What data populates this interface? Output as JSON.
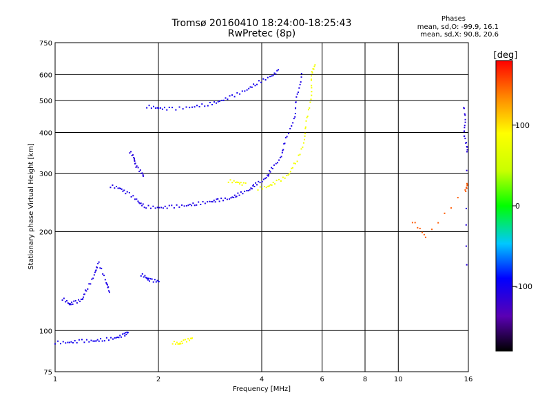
{
  "chart_data": {
    "type": "scatter",
    "title": "Tromsø 20160410 18:24:00-18:25:43",
    "subtitle": "RwPretec (8p)",
    "stats": {
      "heading": "Phases",
      "line1": "mean, sd,O: -99.9, 16.1",
      "line2": "mean, sd,X:  90.8, 20.6"
    },
    "xlabel": "Frequency [MHz]",
    "ylabel": "Stationary phase Virtual Height [km]",
    "xscale": "log",
    "yscale": "log",
    "xlim": [
      1,
      16
    ],
    "ylim": [
      75,
      750
    ],
    "x_ticks": [
      1,
      2,
      4,
      6,
      8,
      10,
      16
    ],
    "y_ticks": [
      75,
      100,
      200,
      300,
      400,
      500,
      600,
      750
    ],
    "grid": true,
    "colorbar": {
      "label": "[deg]",
      "range": [
        -180,
        180
      ],
      "ticks": [
        100,
        0,
        -100
      ]
    },
    "series": [
      {
        "phase": -100,
        "points": [
          [
            1.0,
            92
          ],
          [
            1.1,
            92
          ],
          [
            1.2,
            93
          ],
          [
            1.3,
            93
          ],
          [
            1.4,
            94
          ],
          [
            1.5,
            95
          ],
          [
            1.6,
            97
          ],
          [
            1.62,
            99
          ]
        ]
      },
      {
        "phase": -105,
        "points": [
          [
            1.05,
            125
          ],
          [
            1.1,
            120
          ],
          [
            1.15,
            122
          ],
          [
            1.2,
            125
          ],
          [
            1.25,
            135
          ],
          [
            1.3,
            150
          ],
          [
            1.35,
            160
          ],
          [
            1.4,
            140
          ],
          [
            1.45,
            132
          ]
        ]
      },
      {
        "phase": -100,
        "points": [
          [
            1.78,
            148
          ],
          [
            1.85,
            144
          ],
          [
            1.92,
            142
          ],
          [
            2.0,
            141
          ]
        ]
      },
      {
        "phase": -105,
        "points": [
          [
            1.45,
            275
          ],
          [
            1.55,
            270
          ],
          [
            1.65,
            260
          ],
          [
            1.75,
            245
          ],
          [
            1.85,
            238
          ],
          [
            2.0,
            236
          ],
          [
            2.2,
            238
          ],
          [
            2.4,
            240
          ],
          [
            2.6,
            243
          ],
          [
            2.8,
            246
          ],
          [
            3.0,
            249
          ],
          [
            3.2,
            252
          ],
          [
            3.4,
            258
          ],
          [
            3.6,
            265
          ],
          [
            3.8,
            275
          ],
          [
            4.0,
            285
          ],
          [
            4.2,
            300
          ],
          [
            4.4,
            320
          ],
          [
            4.6,
            350
          ],
          [
            4.8,
            400
          ],
          [
            5.0,
            460
          ],
          [
            5.1,
            520
          ],
          [
            5.2,
            600
          ]
        ]
      },
      {
        "phase": -110,
        "points": [
          [
            1.65,
            350
          ],
          [
            1.7,
            330
          ],
          [
            1.75,
            310
          ],
          [
            1.8,
            295
          ]
        ]
      },
      {
        "phase": -100,
        "points": [
          [
            1.85,
            480
          ],
          [
            2.0,
            474
          ],
          [
            2.2,
            472
          ],
          [
            2.5,
            478
          ],
          [
            2.8,
            487
          ],
          [
            3.0,
            497
          ],
          [
            3.3,
            515
          ],
          [
            3.6,
            540
          ],
          [
            3.9,
            565
          ],
          [
            4.2,
            590
          ],
          [
            4.5,
            615
          ]
        ]
      },
      {
        "phase": 80,
        "points": [
          [
            3.9,
            270
          ],
          [
            4.2,
            275
          ],
          [
            4.5,
            285
          ],
          [
            4.8,
            300
          ],
          [
            5.1,
            330
          ],
          [
            5.3,
            380
          ],
          [
            5.45,
            440
          ],
          [
            5.55,
            520
          ],
          [
            5.62,
            600
          ],
          [
            5.68,
            640
          ]
        ]
      },
      {
        "phase": 85,
        "points": [
          [
            3.2,
            285
          ],
          [
            3.4,
            282
          ],
          [
            3.6,
            278
          ]
        ]
      },
      {
        "phase": 90,
        "points": [
          [
            2.2,
            92
          ],
          [
            2.3,
            91
          ],
          [
            2.4,
            93
          ],
          [
            2.5,
            95
          ]
        ]
      },
      {
        "phase": -110,
        "points": [
          [
            15.5,
            480
          ],
          [
            15.6,
            420
          ],
          [
            15.7,
            380
          ],
          [
            15.8,
            350
          ],
          [
            15.9,
            160
          ]
        ]
      },
      {
        "phase": 150,
        "points": [
          [
            11,
            215
          ],
          [
            12,
            192
          ],
          [
            15.7,
            265
          ],
          [
            15.8,
            280
          ]
        ]
      }
    ]
  }
}
